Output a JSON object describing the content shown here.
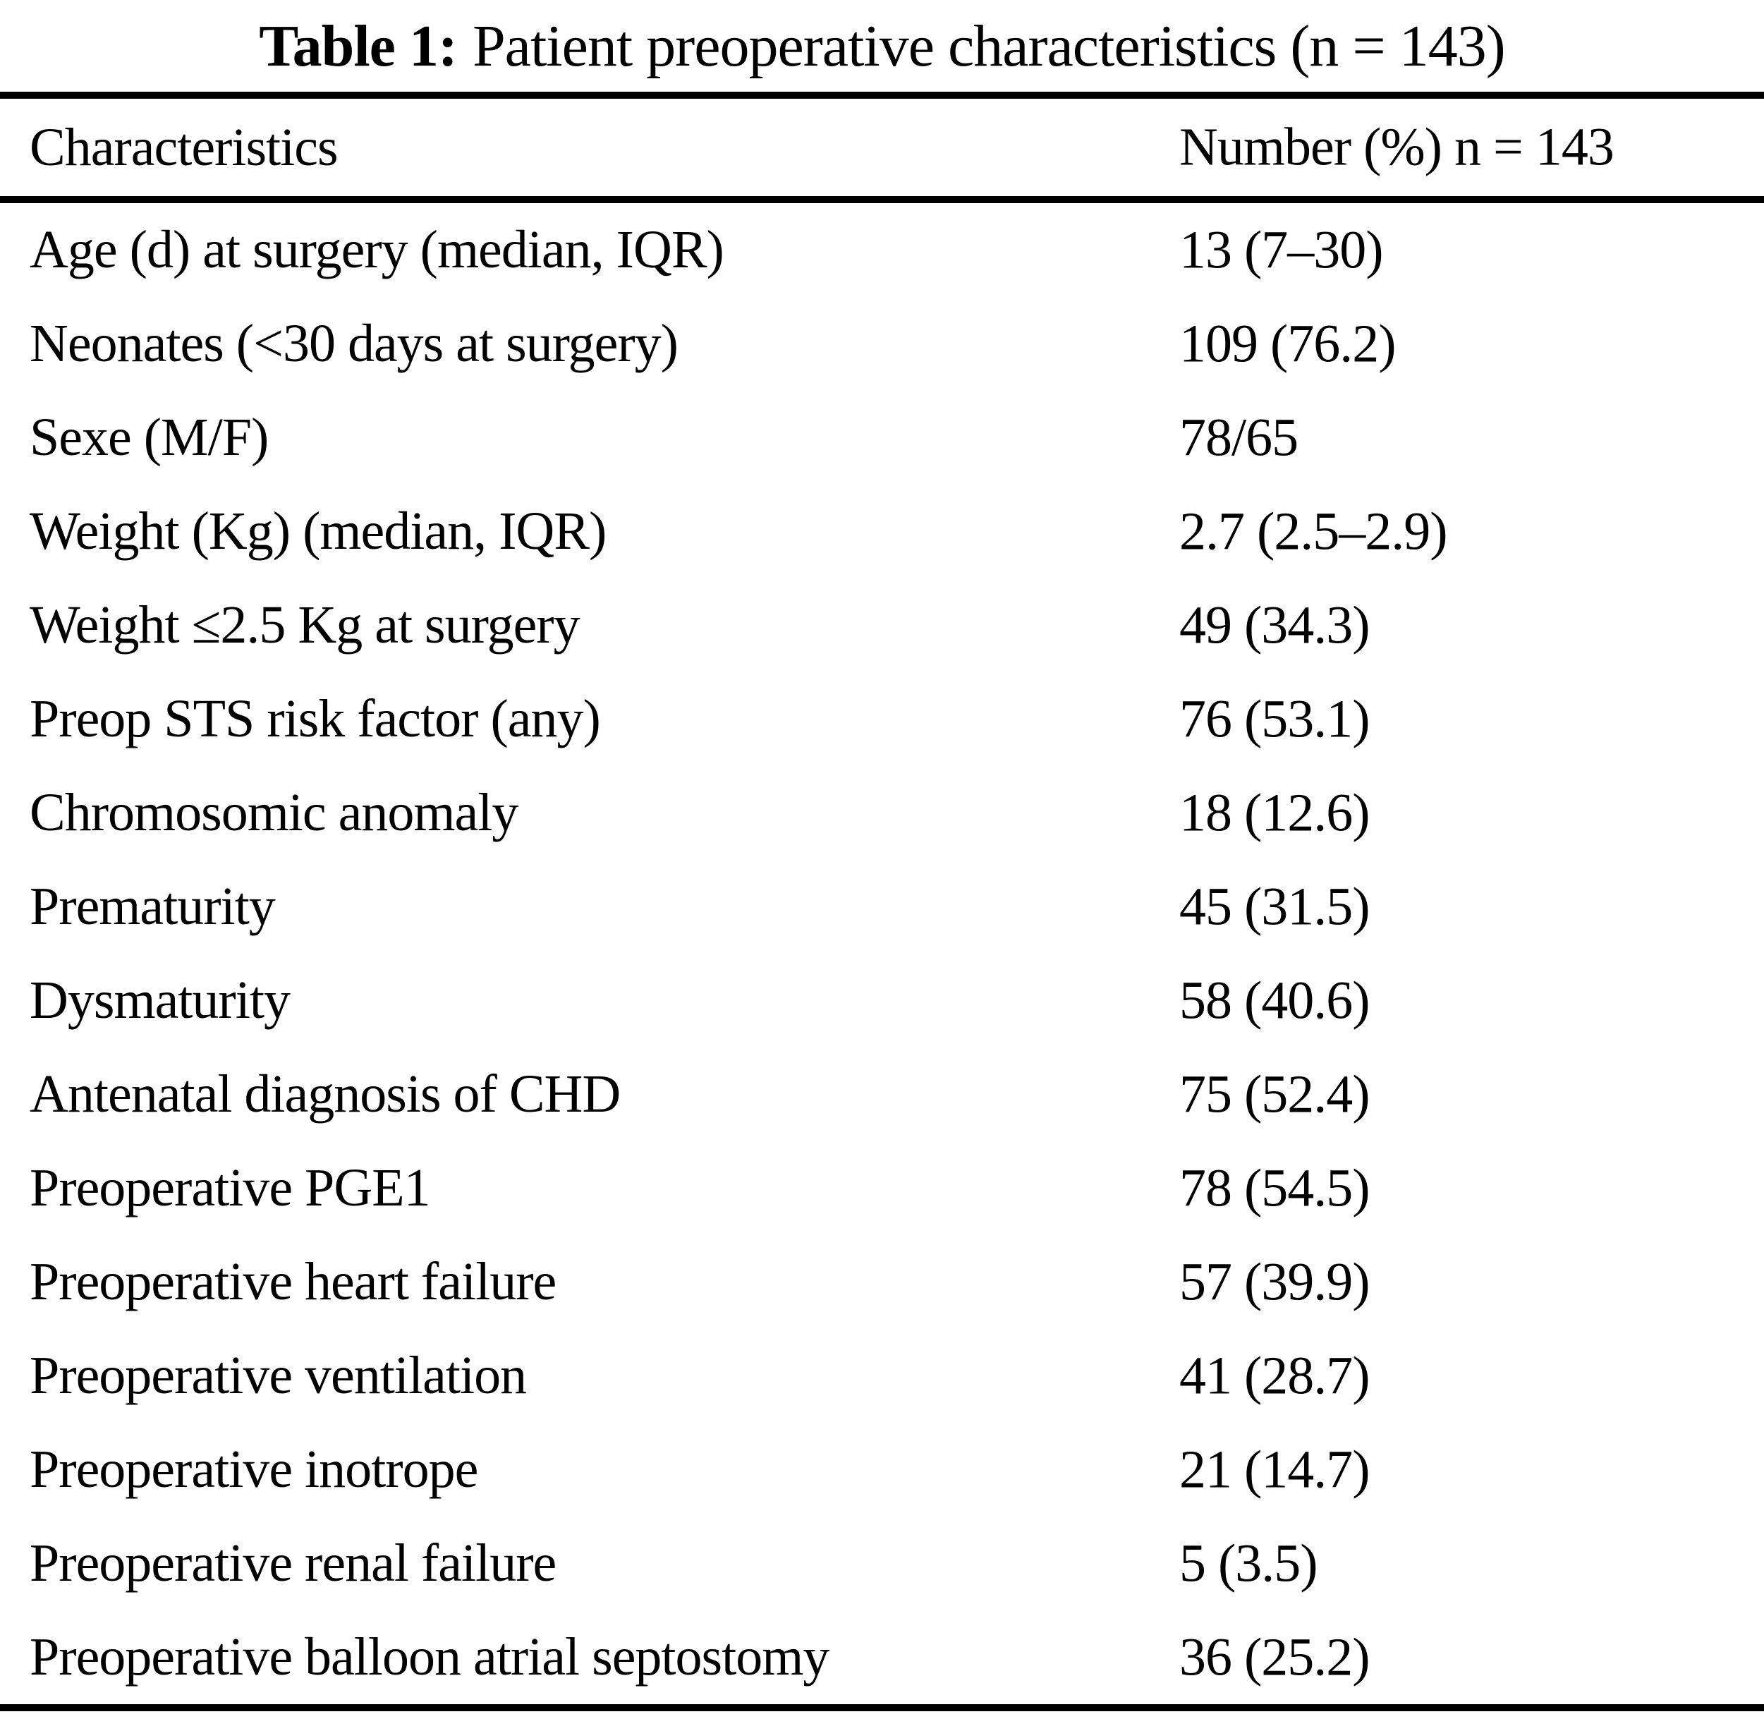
{
  "title": {
    "bold": "Table 1:",
    "text": "Patient preoperative characteristics (n = 143)"
  },
  "header": {
    "characteristics": "Characteristics",
    "number": "Number (%) n = 143"
  },
  "table": {
    "rows": [
      {
        "label": "Age (d) at surgery (median, IQR)",
        "value": "13 (7–30)"
      },
      {
        "label": "Neonates (<30 days at surgery)",
        "value": "109 (76.2)"
      },
      {
        "label": "Sexe (M/F)",
        "value": "78/65"
      },
      {
        "label": "Weight (Kg) (median, IQR)",
        "value": "2.7 (2.5–2.9)"
      },
      {
        "label": "Weight ≤2.5 Kg at surgery",
        "value": "49 (34.3)"
      },
      {
        "label": "Preop STS risk factor (any)",
        "value": "76 (53.1)"
      },
      {
        "label": "Chromosomic anomaly",
        "value": "18 (12.6)"
      },
      {
        "label": "Prematurity",
        "value": "45 (31.5)"
      },
      {
        "label": "Dysmaturity",
        "value": "58 (40.6)"
      },
      {
        "label": "Antenatal diagnosis of CHD",
        "value": "75 (52.4)"
      },
      {
        "label": "Preoperative PGE1",
        "value": "78 (54.5)"
      },
      {
        "label": "Preoperative heart failure",
        "value": "57 (39.9)"
      },
      {
        "label": "Preoperative ventilation",
        "value": "41 (28.7)"
      },
      {
        "label": "Preoperative inotrope",
        "value": "21 (14.7)"
      },
      {
        "label": "Preoperative renal failure",
        "value": "5 (3.5)"
      },
      {
        "label": "Preoperative balloon atrial septostomy",
        "value": "36 (25.2)"
      }
    ]
  }
}
